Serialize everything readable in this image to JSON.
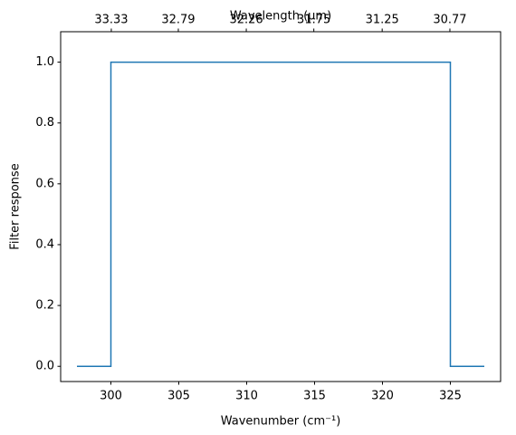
{
  "chart_data": {
    "type": "line",
    "xlabel": "Wavenumber (cm⁻¹)",
    "ylabel": "Filter response",
    "x2label": "Wavelength (μm)",
    "x": [
      297.5,
      300,
      300,
      325,
      325,
      327.5
    ],
    "series": [
      {
        "color": "#1f77b4",
        "values": [
          0,
          0,
          1,
          1,
          0,
          0
        ]
      }
    ],
    "xlim": [
      296.3,
      328.7
    ],
    "xticks": [
      300,
      305,
      310,
      315,
      320,
      325
    ],
    "ylim": [
      -0.05,
      1.1
    ],
    "yticks": [
      {
        "value": 0,
        "label": "0.0"
      },
      0.2,
      0.4,
      0.6,
      0.8,
      {
        "value": 1,
        "label": "1.0"
      }
    ],
    "x2lim": [
      33.75,
      30.42
    ],
    "x2scale": "reciprocal",
    "x2ticks": [
      33.33,
      32.79,
      32.26,
      31.75,
      31.25,
      30.77
    ]
  }
}
